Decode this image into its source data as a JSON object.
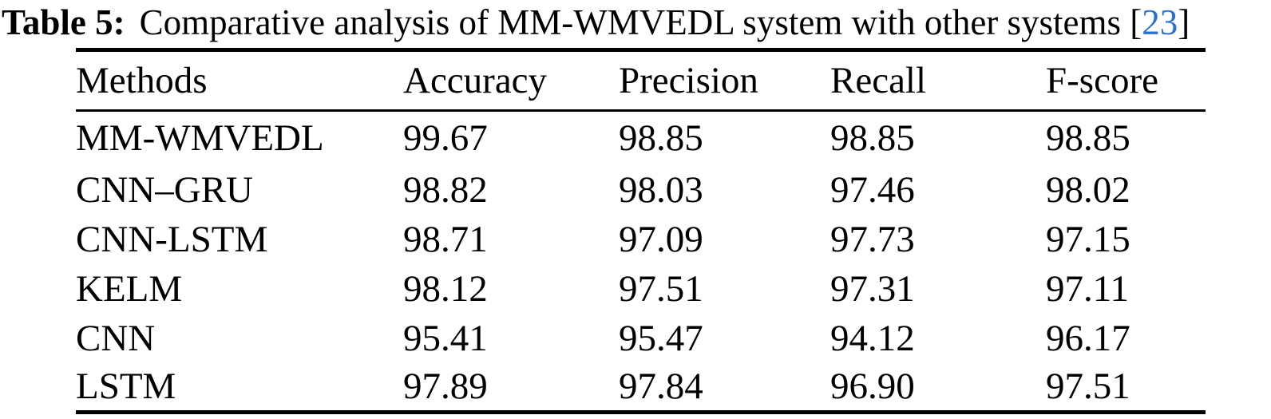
{
  "caption": {
    "label": "Table 5:",
    "text": "Comparative analysis of MM-WMVEDL system with other systems",
    "citation": {
      "open_bracket": "[",
      "number": "23",
      "close_bracket": "]",
      "link_color": "#2a6fd2"
    }
  },
  "table": {
    "headers": [
      "Methods",
      "Accuracy",
      "Precision",
      "Recall",
      "F-score"
    ],
    "rows": [
      [
        "MM-WMVEDL",
        "99.67",
        "98.85",
        "98.85",
        "98.85"
      ],
      [
        "CNN–GRU",
        "98.82",
        "98.03",
        "97.46",
        "98.02"
      ],
      [
        "CNN-LSTM",
        "98.71",
        "97.09",
        "97.73",
        "97.15"
      ],
      [
        "KELM",
        "98.12",
        "97.51",
        "97.31",
        "97.11"
      ],
      [
        "CNN",
        "95.41",
        "95.47",
        "94.12",
        "96.17"
      ],
      [
        "LSTM",
        "97.89",
        "97.84",
        "96.90",
        "97.51"
      ]
    ]
  },
  "colors": {
    "text": "#000000",
    "background": "#ffffff",
    "rule": "#000000"
  }
}
